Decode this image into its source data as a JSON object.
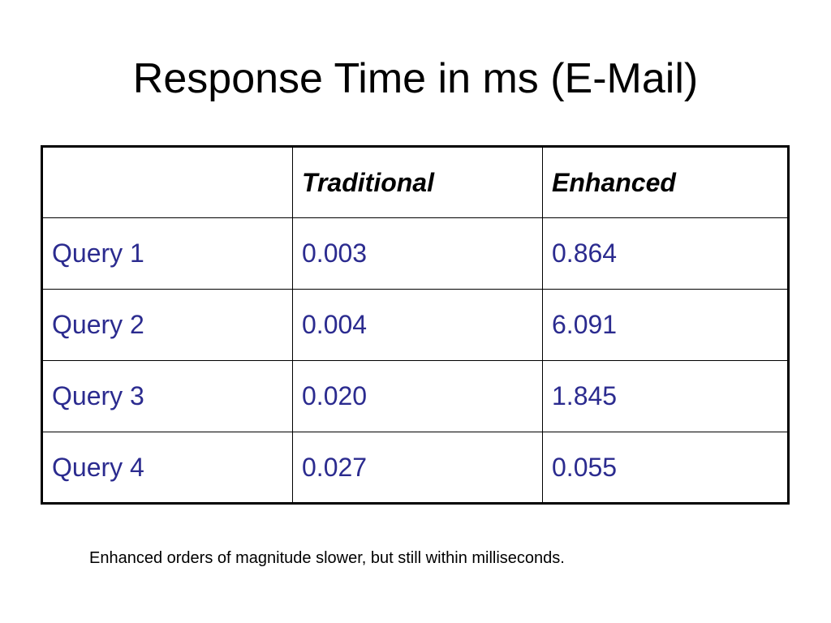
{
  "title": "Response Time in ms (E-Mail)",
  "table": {
    "header": [
      "Traditional",
      "Enhanced"
    ],
    "rows": [
      [
        "Query 1",
        "0.003",
        "0.864"
      ],
      [
        "Query 2",
        "0.004",
        "6.091"
      ],
      [
        "Query 3",
        "0.020",
        "1.845"
      ],
      [
        "Query 4",
        "0.027",
        "0.055"
      ]
    ]
  },
  "note": "Enhanced orders of magnitude slower, but still within milliseconds."
}
